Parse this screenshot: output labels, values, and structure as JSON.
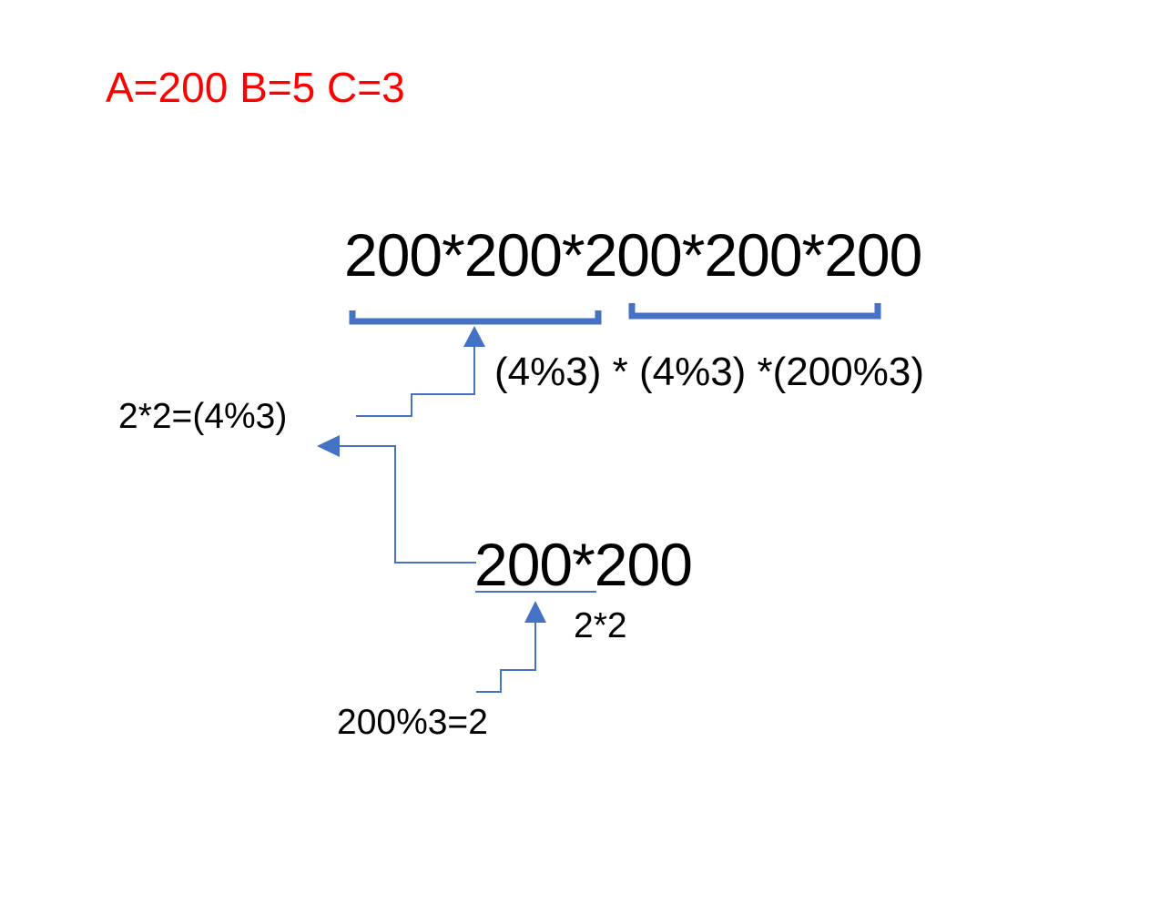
{
  "params": "A=200 B=5 C=3",
  "main_expression": "200*200*200*200*200",
  "mod_expression": "(4%3) * (4%3) *(200%3)",
  "left_note": "2*2=(4%3)",
  "sub_expression": "200*200",
  "sub_note": "2*2",
  "bottom_note": "200%3=2",
  "colors": {
    "params_text": "#ff0000",
    "text": "#000000",
    "bracket": "#4472c4",
    "arrow": "#4472c4"
  }
}
